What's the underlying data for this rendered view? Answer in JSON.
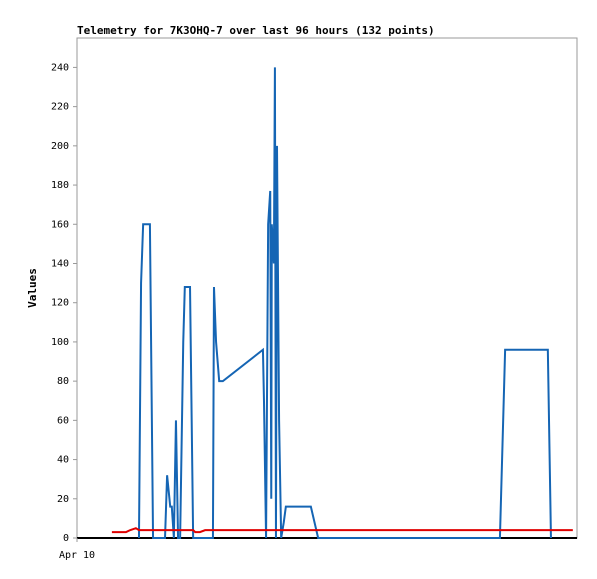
{
  "chart_data": {
    "type": "line",
    "title": "Telemetry for 7K3OHQ-7 over last 96 hours (132 points)",
    "y_label": "Values",
    "x": [
      6.7,
      9.4,
      10.2,
      11.3,
      11.9,
      12.3,
      12.7,
      14.0,
      14.6,
      16.9,
      17.3,
      17.9,
      18.2,
      18.6,
      19.0,
      19.4,
      19.8,
      20.4,
      20.7,
      21.7,
      22.3,
      22.7,
      23.6,
      24.6,
      26.1,
      26.3,
      26.7,
      27.3,
      28.0,
      35.7,
      35.9,
      36.3,
      36.7,
      37.1,
      37.3,
      37.4,
      37.8,
      38.0,
      38.2,
      38.4,
      38.8,
      39.2,
      39.7,
      40.1,
      44.9,
      46.3,
      81.2,
      82.2,
      90.4,
      91.0,
      95.2
    ],
    "series": [
      {
        "color": "#1565b4",
        "values": [
          null,
          null,
          null,
          null,
          0,
          130,
          160,
          160,
          0,
          0,
          32,
          16,
          16,
          0,
          60,
          0,
          0,
          100,
          128,
          128,
          0,
          0,
          0,
          0,
          0,
          128,
          100,
          80,
          80,
          96,
          70,
          0,
          160,
          177,
          20,
          160,
          140,
          240,
          0,
          200,
          60,
          0,
          8,
          16,
          16,
          0,
          0,
          96,
          96,
          0,
          null
        ]
      },
      {
        "color": "#e00000",
        "values": [
          3,
          3,
          4,
          5,
          4,
          4,
          4,
          4,
          4,
          4,
          4,
          4,
          4,
          4,
          4,
          4,
          4,
          4,
          4,
          4,
          4,
          3,
          3,
          4,
          4,
          4,
          4,
          4,
          4,
          4,
          4,
          4,
          4,
          4,
          4,
          4,
          4,
          4,
          4,
          4,
          4,
          4,
          4,
          4,
          4,
          4,
          4,
          4,
          4,
          4,
          4
        ]
      }
    ],
    "xlim": [
      0,
      96
    ],
    "xticks": [
      {
        "value": 0,
        "label": "Apr 10"
      }
    ],
    "ylim": [
      0,
      255
    ],
    "yticks": [
      0,
      20,
      40,
      60,
      80,
      100,
      120,
      140,
      160,
      180,
      200,
      220,
      240
    ]
  }
}
